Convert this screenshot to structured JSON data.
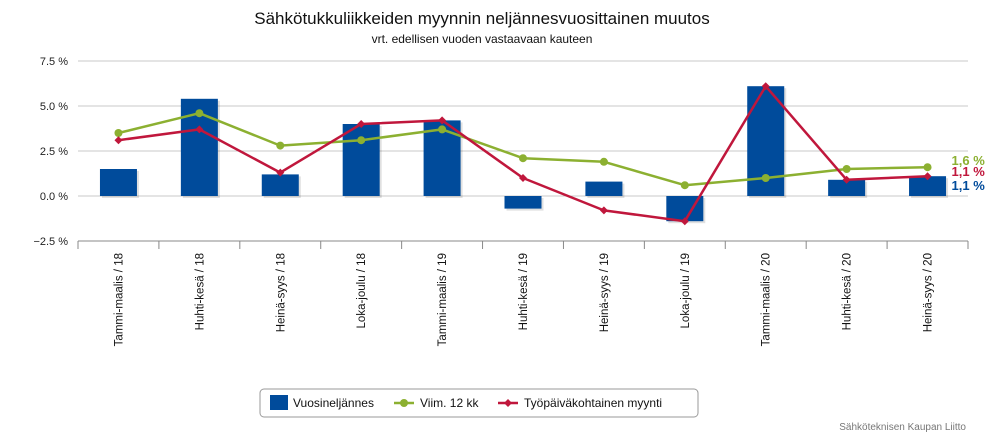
{
  "chart_data": {
    "type": "bar",
    "title": "Sähkötukkuliikkeiden myynnin neljännesvuosittainen muutos",
    "subtitle": "vrt. edellisen vuoden vastaavaan kauteen",
    "categories": [
      "Tammi-maalis / 18",
      "Huhti-kesä / 18",
      "Heinä-syys / 18",
      "Loka-joulu / 18",
      "Tammi-maalis / 19",
      "Huhti-kesä / 19",
      "Heinä-syys / 19",
      "Loka-joulu / 19",
      "Tammi-maalis / 20",
      "Huhti-kesä / 20",
      "Heinä-syys / 20"
    ],
    "ylim": [
      -2.5,
      7.5
    ],
    "yticks": [
      {
        "value": 7.5,
        "label": "7.5 %"
      },
      {
        "value": 5.0,
        "label": "5.0 %"
      },
      {
        "value": 2.5,
        "label": "2.5 %"
      },
      {
        "value": 0.0,
        "label": "0.0 %"
      },
      {
        "value": -2.5,
        "label": "−2.5 %"
      }
    ],
    "grid": true,
    "legend_position": "bottom-center",
    "series": [
      {
        "name": "Vuosineljännes",
        "type": "bar",
        "color": "#004b9b",
        "values": [
          1.5,
          5.4,
          1.2,
          4.0,
          4.2,
          -0.7,
          0.8,
          -1.4,
          6.1,
          0.9,
          1.1
        ],
        "end_label": "1,1 %"
      },
      {
        "name": "Viim. 12 kk",
        "type": "line",
        "color": "#8cb031",
        "values": [
          3.5,
          4.6,
          2.8,
          3.1,
          3.7,
          2.1,
          1.9,
          0.6,
          1.0,
          1.5,
          1.6
        ],
        "end_label": "1,6 %"
      },
      {
        "name": "Työpäiväkohtainen myynti",
        "type": "line",
        "color": "#c0173c",
        "values": [
          3.1,
          3.7,
          1.3,
          4.0,
          4.2,
          1.0,
          -0.8,
          -1.4,
          6.1,
          0.9,
          1.1
        ],
        "end_label": "1,1 %"
      }
    ],
    "credit": "Sähköteknisen Kaupan Liitto"
  }
}
